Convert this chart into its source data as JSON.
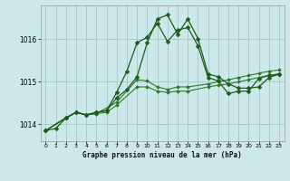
{
  "title": "Graphe pression niveau de la mer (hPa)",
  "bg_color": "#cce8e8",
  "grid_color": "#aacccc",
  "line_color_dark": "#1a5c1a",
  "line_color_med": "#2d7a2d",
  "xlim": [
    -0.5,
    23.5
  ],
  "ylim": [
    1013.6,
    1016.8
  ],
  "yticks": [
    1014,
    1015,
    1016
  ],
  "xticks": [
    0,
    1,
    2,
    3,
    4,
    5,
    6,
    7,
    8,
    9,
    10,
    11,
    12,
    13,
    14,
    15,
    16,
    17,
    18,
    19,
    20,
    21,
    22,
    23
  ],
  "line_main_x": [
    0,
    1,
    2,
    3,
    4,
    5,
    6,
    7,
    8,
    9,
    10,
    11,
    12,
    13,
    14,
    15,
    16,
    17,
    18,
    19,
    20,
    21,
    22,
    23
  ],
  "line_main_y": [
    1013.85,
    1013.9,
    1014.15,
    1014.28,
    1014.22,
    1014.28,
    1014.32,
    1014.75,
    1015.25,
    1015.92,
    1016.05,
    1016.38,
    1015.95,
    1016.22,
    1016.28,
    1015.85,
    1015.1,
    1015.02,
    1014.72,
    1014.78,
    1014.78,
    1015.08,
    1015.15,
    1015.18
  ],
  "line_peak_x": [
    0,
    2,
    3,
    4,
    5,
    6,
    7,
    8,
    9,
    10,
    11,
    12,
    13,
    14,
    15,
    16,
    17,
    18,
    19,
    20,
    21,
    22,
    23
  ],
  "line_peak_y": [
    1013.85,
    1014.15,
    1014.28,
    1014.22,
    1014.28,
    1014.32,
    1014.62,
    1014.82,
    1015.12,
    1015.92,
    1016.48,
    1016.58,
    1016.12,
    1016.48,
    1016.02,
    1015.18,
    1015.12,
    1014.95,
    1014.85,
    1014.85,
    1014.88,
    1015.1,
    1015.18
  ],
  "line_low1_x": [
    0,
    2,
    3,
    4,
    5,
    6,
    7,
    9,
    10,
    11,
    12,
    13,
    14,
    16,
    17,
    18,
    19,
    20,
    21,
    22,
    23
  ],
  "line_low1_y": [
    1013.85,
    1014.15,
    1014.28,
    1014.22,
    1014.25,
    1014.28,
    1014.45,
    1014.88,
    1014.88,
    1014.78,
    1014.75,
    1014.78,
    1014.78,
    1014.88,
    1014.92,
    1014.95,
    1015.0,
    1015.05,
    1015.1,
    1015.15,
    1015.18
  ],
  "line_low2_x": [
    0,
    2,
    3,
    4,
    5,
    7,
    9,
    10,
    11,
    12,
    13,
    14,
    16,
    17,
    18,
    19,
    20,
    21,
    22,
    23
  ],
  "line_low2_y": [
    1013.85,
    1014.15,
    1014.28,
    1014.22,
    1014.25,
    1014.52,
    1015.05,
    1015.02,
    1014.88,
    1014.82,
    1014.88,
    1014.88,
    1014.95,
    1015.0,
    1015.05,
    1015.1,
    1015.15,
    1015.2,
    1015.25,
    1015.28
  ]
}
